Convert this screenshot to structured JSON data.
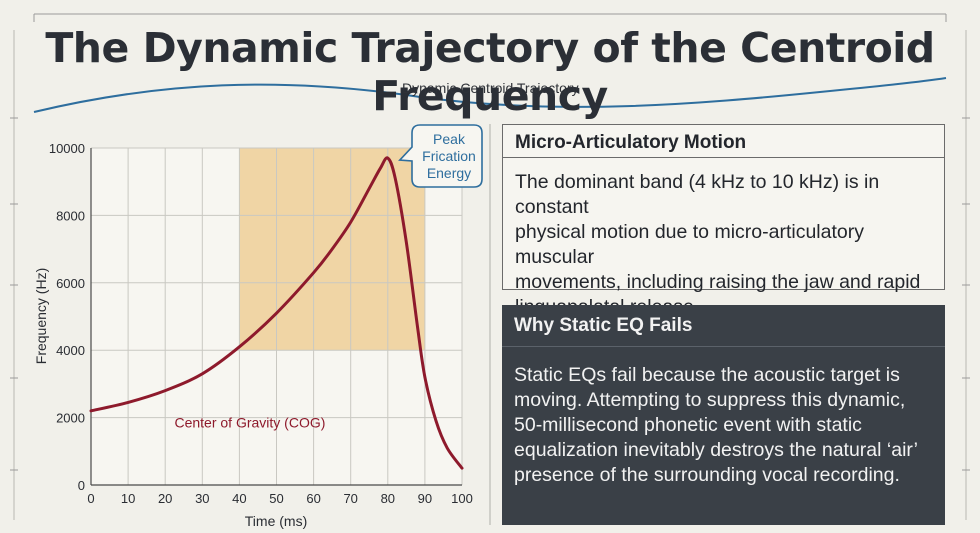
{
  "header": {
    "title": "The Dynamic Trajectory of the Centroid Frequency",
    "trajectory_label": "Dynamic Centroid Trajectory"
  },
  "chart_data": {
    "type": "line",
    "xlabel": "Time (ms)",
    "ylabel": "Frequency (Hz)",
    "xlim": [
      0,
      100
    ],
    "ylim": [
      0,
      10000
    ],
    "x_ticks": [
      0,
      10,
      20,
      30,
      40,
      50,
      60,
      70,
      80,
      90,
      100
    ],
    "y_ticks": [
      0,
      2000,
      4000,
      6000,
      8000,
      10000
    ],
    "grid": true,
    "series": [
      {
        "name": "Center of Gravity (COG)",
        "color": "#8e1a2c",
        "x": [
          0,
          10,
          20,
          30,
          40,
          50,
          60,
          65,
          70,
          75,
          78,
          80,
          82,
          85,
          88,
          90,
          93,
          96,
          100
        ],
        "y": [
          2200,
          2450,
          2800,
          3300,
          4100,
          5100,
          6300,
          7000,
          7800,
          8800,
          9400,
          9700,
          9100,
          7200,
          4700,
          3200,
          1900,
          1100,
          500
        ]
      }
    ],
    "highlight_region": {
      "x": [
        40,
        90
      ],
      "y": [
        4000,
        10000
      ],
      "color": "#efcf98"
    },
    "annotations": [
      {
        "text_lines": [
          "Peak",
          "Frication",
          "Energy"
        ],
        "x": 80,
        "y": 9700,
        "border_color": "#2e6e9e"
      }
    ]
  },
  "panels": {
    "micro_articulatory": {
      "title": "Micro-Articulatory Motion",
      "lines": [
        "The dominant band (4 kHz to 10 kHz) is in constant",
        "physical motion due to micro-articulatory muscular",
        "movements, including raising the jaw and rapid",
        "linguapalatal release."
      ]
    },
    "static_eq": {
      "title": "Why Static EQ Fails",
      "lines": [
        "Static EQs fail because the acoustic target is",
        "moving. Attempting to suppress this dynamic,",
        "50-millisecond phonetic event with static",
        "equalization inevitably destroys the natural ‘air’",
        "presence of the surrounding vocal recording."
      ]
    }
  }
}
